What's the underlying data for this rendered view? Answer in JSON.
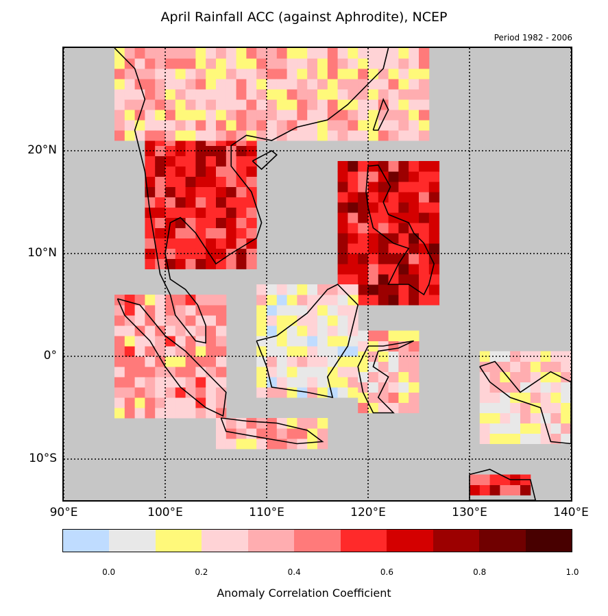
{
  "title": "April Rainfall ACC (against Aphrodite), NCEP",
  "subtitle": "Period 1982 - 2006",
  "map": {
    "lon_range": [
      90,
      140
    ],
    "lat_range": [
      -14,
      30
    ],
    "lat_labels": [
      {
        "lat": 20,
        "text": "20°N"
      },
      {
        "lat": 10,
        "text": "10°N"
      },
      {
        "lat": 0,
        "text": "0°"
      },
      {
        "lat": -10,
        "text": "10°S"
      }
    ],
    "lon_labels": [
      {
        "lon": 90,
        "text": "90°E"
      },
      {
        "lon": 100,
        "text": "100°E"
      },
      {
        "lon": 110,
        "text": "110°E"
      },
      {
        "lon": 120,
        "text": "120°E"
      },
      {
        "lon": 130,
        "text": "130°E"
      },
      {
        "lon": 140,
        "text": "140°E"
      }
    ],
    "grid_lines": "dotted",
    "land_color": "#c6c6c6"
  },
  "colorbar": {
    "label": "Anomaly Correlation Coefficient",
    "range": [
      -0.1,
      1.0
    ],
    "ticks": [
      "0.0",
      "0.2",
      "0.4",
      "0.6",
      "0.8",
      "1.0"
    ],
    "tick_values": [
      0.0,
      0.2,
      0.4,
      0.6,
      0.8,
      1.0
    ],
    "colors": [
      "#bfdcff",
      "#e8e8e8",
      "#fff97a",
      "#ffd3d6",
      "#ffadb0",
      "#ff7a7a",
      "#ff2a2a",
      "#d40000",
      "#9c0000",
      "#700000",
      "#480000"
    ]
  },
  "regions": [
    {
      "name": "Indochina",
      "lon": [
        98,
        108.5
      ],
      "lat": [
        8.5,
        21
      ],
      "acc": 0.6
    },
    {
      "name": "Southern China",
      "lon": [
        95,
        126
      ],
      "lat": [
        21,
        30
      ],
      "acc": 0.3
    },
    {
      "name": "Philippines",
      "lon": [
        117,
        127
      ],
      "lat": [
        5,
        19
      ],
      "acc": 0.65
    },
    {
      "name": "Sumatra",
      "lon": [
        95,
        106
      ],
      "lat": [
        -6,
        5.5
      ],
      "acc": 0.35
    },
    {
      "name": "Borneo",
      "lon": [
        109,
        119
      ],
      "lat": [
        -4,
        7
      ],
      "acc": 0.15
    },
    {
      "name": "Java",
      "lon": [
        105,
        116
      ],
      "lat": [
        -9,
        -6
      ],
      "acc": 0.3
    },
    {
      "name": "Sulawesi",
      "lon": [
        119,
        125
      ],
      "lat": [
        -5.5,
        2
      ],
      "acc": 0.25
    },
    {
      "name": "New Guinea",
      "lon": [
        131,
        140
      ],
      "lat": [
        -8.5,
        0
      ],
      "acc": 0.2
    },
    {
      "name": "Northern Australia",
      "lon": [
        130,
        136
      ],
      "lat": [
        -13.5,
        -11.5
      ],
      "acc": 0.6
    }
  ]
}
